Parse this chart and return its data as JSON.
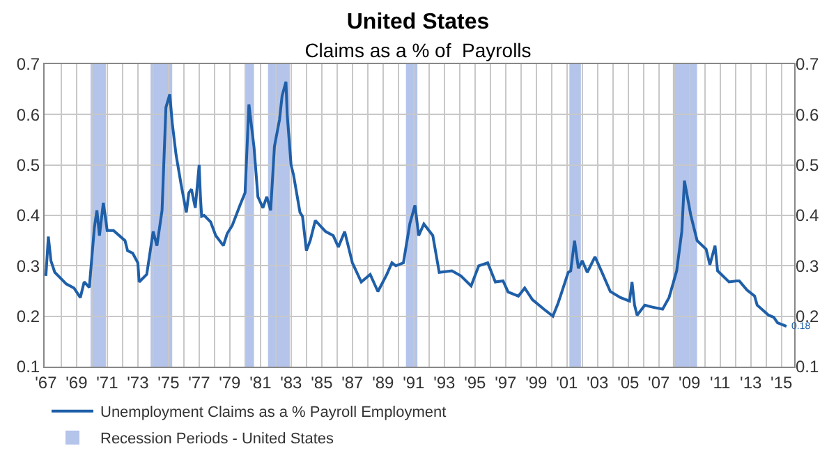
{
  "chart_data": {
    "type": "line",
    "title": "United States",
    "subtitle": "Claims as a % of  Payrolls",
    "xlim": [
      "1966-12-01",
      "2015-11-01"
    ],
    "ylim": [
      0.1,
      0.7
    ],
    "yticks": [
      0.1,
      0.2,
      0.3,
      0.4,
      0.5,
      0.6,
      0.7
    ],
    "y2lim": [
      0.1,
      0.7
    ],
    "y2ticks": [
      0.1,
      0.2,
      0.3,
      0.4,
      0.5,
      0.6,
      0.7
    ],
    "xticks": [
      {
        "value": "1967-01-01",
        "label": "'67"
      },
      {
        "value": "1968-01-01",
        "label": null
      },
      {
        "value": "1969-01-01",
        "label": "'69"
      },
      {
        "value": "1970-01-01",
        "label": null
      },
      {
        "value": "1971-01-01",
        "label": "'71"
      },
      {
        "value": "1972-01-01",
        "label": null
      },
      {
        "value": "1973-01-01",
        "label": "'73"
      },
      {
        "value": "1974-01-01",
        "label": null
      },
      {
        "value": "1975-01-01",
        "label": "'75"
      },
      {
        "value": "1976-01-01",
        "label": null
      },
      {
        "value": "1977-01-01",
        "label": "'77"
      },
      {
        "value": "1978-01-01",
        "label": null
      },
      {
        "value": "1979-01-01",
        "label": "'79"
      },
      {
        "value": "1980-01-01",
        "label": null
      },
      {
        "value": "1981-01-01",
        "label": "'81"
      },
      {
        "value": "1982-01-01",
        "label": null
      },
      {
        "value": "1983-01-01",
        "label": "'83"
      },
      {
        "value": "1984-01-01",
        "label": null
      },
      {
        "value": "1985-01-01",
        "label": "'85"
      },
      {
        "value": "1986-01-01",
        "label": null
      },
      {
        "value": "1987-01-01",
        "label": "'87"
      },
      {
        "value": "1988-01-01",
        "label": null
      },
      {
        "value": "1989-01-01",
        "label": "'89"
      },
      {
        "value": "1990-01-01",
        "label": null
      },
      {
        "value": "1991-01-01",
        "label": "'91"
      },
      {
        "value": "1992-01-01",
        "label": null
      },
      {
        "value": "1993-01-01",
        "label": "'93"
      },
      {
        "value": "1994-01-01",
        "label": null
      },
      {
        "value": "1995-01-01",
        "label": "'95"
      },
      {
        "value": "1996-01-01",
        "label": null
      },
      {
        "value": "1997-01-01",
        "label": "'97"
      },
      {
        "value": "1998-01-01",
        "label": null
      },
      {
        "value": "1999-01-01",
        "label": "'99"
      },
      {
        "value": "2000-01-01",
        "label": null
      },
      {
        "value": "2001-01-01",
        "label": "'01"
      },
      {
        "value": "2002-01-01",
        "label": null
      },
      {
        "value": "2003-01-01",
        "label": "'03"
      },
      {
        "value": "2004-01-01",
        "label": null
      },
      {
        "value": "2005-01-01",
        "label": "'05"
      },
      {
        "value": "2006-01-01",
        "label": null
      },
      {
        "value": "2007-01-01",
        "label": "'07"
      },
      {
        "value": "2008-01-01",
        "label": null
      },
      {
        "value": "2009-01-01",
        "label": "'09"
      },
      {
        "value": "2010-01-01",
        "label": null
      },
      {
        "value": "2011-01-01",
        "label": "'11"
      },
      {
        "value": "2012-01-01",
        "label": null
      },
      {
        "value": "2013-01-01",
        "label": "'13"
      },
      {
        "value": "2014-01-01",
        "label": null
      },
      {
        "value": "2015-01-01",
        "label": "'15"
      }
    ],
    "grid": true,
    "legend": "bottom left",
    "x": [
      "1967-01",
      "1967-03",
      "1967-05",
      "1967-08",
      "1968-05",
      "1968-11",
      "1969-04",
      "1969-07",
      "1969-11",
      "1970-03",
      "1970-05",
      "1970-07",
      "1970-10",
      "1971-01",
      "1971-06",
      "1972-03",
      "1972-05",
      "1972-09",
      "1973-01",
      "1973-02",
      "1973-08",
      "1974-01",
      "1974-04",
      "1974-08",
      "1974-11",
      "1975-02",
      "1975-04",
      "1975-07",
      "1975-11",
      "1976-03",
      "1976-05",
      "1976-07",
      "1976-10",
      "1977-01",
      "1977-02",
      "1977-03",
      "1977-05",
      "1977-10",
      "1978-02",
      "1978-08",
      "1978-11",
      "1979-03",
      "1979-06",
      "1979-09",
      "1980-01",
      "1980-04",
      "1980-08",
      "1980-11",
      "1981-03",
      "1981-06",
      "1981-09",
      "1981-12",
      "1982-04",
      "1982-06",
      "1982-09",
      "1982-10",
      "1983-01",
      "1983-03",
      "1983-08",
      "1983-10",
      "1984-01",
      "1984-04",
      "1984-08",
      "1985-04",
      "1985-10",
      "1986-02",
      "1986-07",
      "1987-01",
      "1987-08",
      "1988-03",
      "1988-09",
      "1989-04",
      "1989-08",
      "1989-11",
      "1990-05",
      "1990-10",
      "1991-02",
      "1991-05",
      "1991-09",
      "1992-04",
      "1992-09",
      "1993-07",
      "1994-02",
      "1994-10",
      "1995-04",
      "1995-11",
      "1996-05",
      "1996-11",
      "1997-03",
      "1997-11",
      "1998-04",
      "1998-10",
      "1999-07",
      "2000-02",
      "2000-06",
      "2000-09",
      "2001-02",
      "2001-04",
      "2001-07",
      "2001-10",
      "2002-01",
      "2002-05",
      "2002-11",
      "2003-04",
      "2003-11",
      "2004-07",
      "2005-02",
      "2005-04",
      "2005-06",
      "2005-08",
      "2006-02",
      "2006-08",
      "2007-04",
      "2007-09",
      "2008-03",
      "2008-07",
      "2008-09",
      "2009-02",
      "2009-07",
      "2010-02",
      "2010-05",
      "2010-09",
      "2010-11",
      "2011-08",
      "2012-02",
      "2012-04",
      "2012-10",
      "2013-04",
      "2013-06",
      "2014-03",
      "2014-07",
      "2014-10",
      "2015-05"
    ],
    "series": [
      {
        "name": "Unemployment Claims as a % Payroll Employment",
        "color": "#1f5fa8",
        "values": [
          0.28,
          0.358,
          0.31,
          0.287,
          0.264,
          0.256,
          0.237,
          0.268,
          0.257,
          0.375,
          0.41,
          0.36,
          0.425,
          0.37,
          0.37,
          0.35,
          0.33,
          0.325,
          0.306,
          0.268,
          0.283,
          0.368,
          0.34,
          0.41,
          0.614,
          0.64,
          0.583,
          0.52,
          0.46,
          0.406,
          0.445,
          0.452,
          0.415,
          0.5,
          0.437,
          0.398,
          0.4,
          0.387,
          0.36,
          0.34,
          0.364,
          0.38,
          0.4,
          0.42,
          0.445,
          0.62,
          0.535,
          0.437,
          0.415,
          0.437,
          0.41,
          0.537,
          0.59,
          0.637,
          0.665,
          0.6,
          0.5,
          0.48,
          0.406,
          0.398,
          0.33,
          0.35,
          0.39,
          0.368,
          0.36,
          0.337,
          0.368,
          0.306,
          0.268,
          0.283,
          0.249,
          0.283,
          0.306,
          0.3,
          0.306,
          0.383,
          0.42,
          0.36,
          0.383,
          0.36,
          0.287,
          0.29,
          0.28,
          0.26,
          0.3,
          0.306,
          0.268,
          0.27,
          0.248,
          0.24,
          0.256,
          0.233,
          0.214,
          0.2,
          0.225,
          0.248,
          0.287,
          0.29,
          0.35,
          0.295,
          0.31,
          0.287,
          0.318,
          0.29,
          0.249,
          0.237,
          0.23,
          0.268,
          0.222,
          0.202,
          0.222,
          0.218,
          0.214,
          0.237,
          0.29,
          0.368,
          0.469,
          0.4,
          0.35,
          0.333,
          0.302,
          0.34,
          0.29,
          0.268,
          0.27,
          0.27,
          0.252,
          0.24,
          0.222,
          0.202,
          0.198,
          0.187,
          0.18
        ]
      }
    ],
    "bands": [
      {
        "axis": "x",
        "from": "1969-12-01",
        "to": "1970-11-30",
        "label": "Recession Periods - United States",
        "color": "#b4c4ea"
      },
      {
        "axis": "x",
        "from": "1973-11-01",
        "to": "1975-03-31",
        "color": "#b4c4ea"
      },
      {
        "axis": "x",
        "from": "1980-01-01",
        "to": "1980-07-31",
        "color": "#b4c4ea"
      },
      {
        "axis": "x",
        "from": "1981-07-01",
        "to": "1982-11-30",
        "color": "#b4c4ea"
      },
      {
        "axis": "x",
        "from": "1990-07-01",
        "to": "1991-03-31",
        "color": "#b4c4ea"
      },
      {
        "axis": "x",
        "from": "2001-03-01",
        "to": "2001-11-30",
        "color": "#b4c4ea"
      },
      {
        "axis": "x",
        "from": "2007-12-01",
        "to": "2009-06-30",
        "color": "#b4c4ea"
      }
    ],
    "annotations": [
      {
        "text": "0.18",
        "x": "2015-05",
        "y": 0.18
      }
    ]
  }
}
